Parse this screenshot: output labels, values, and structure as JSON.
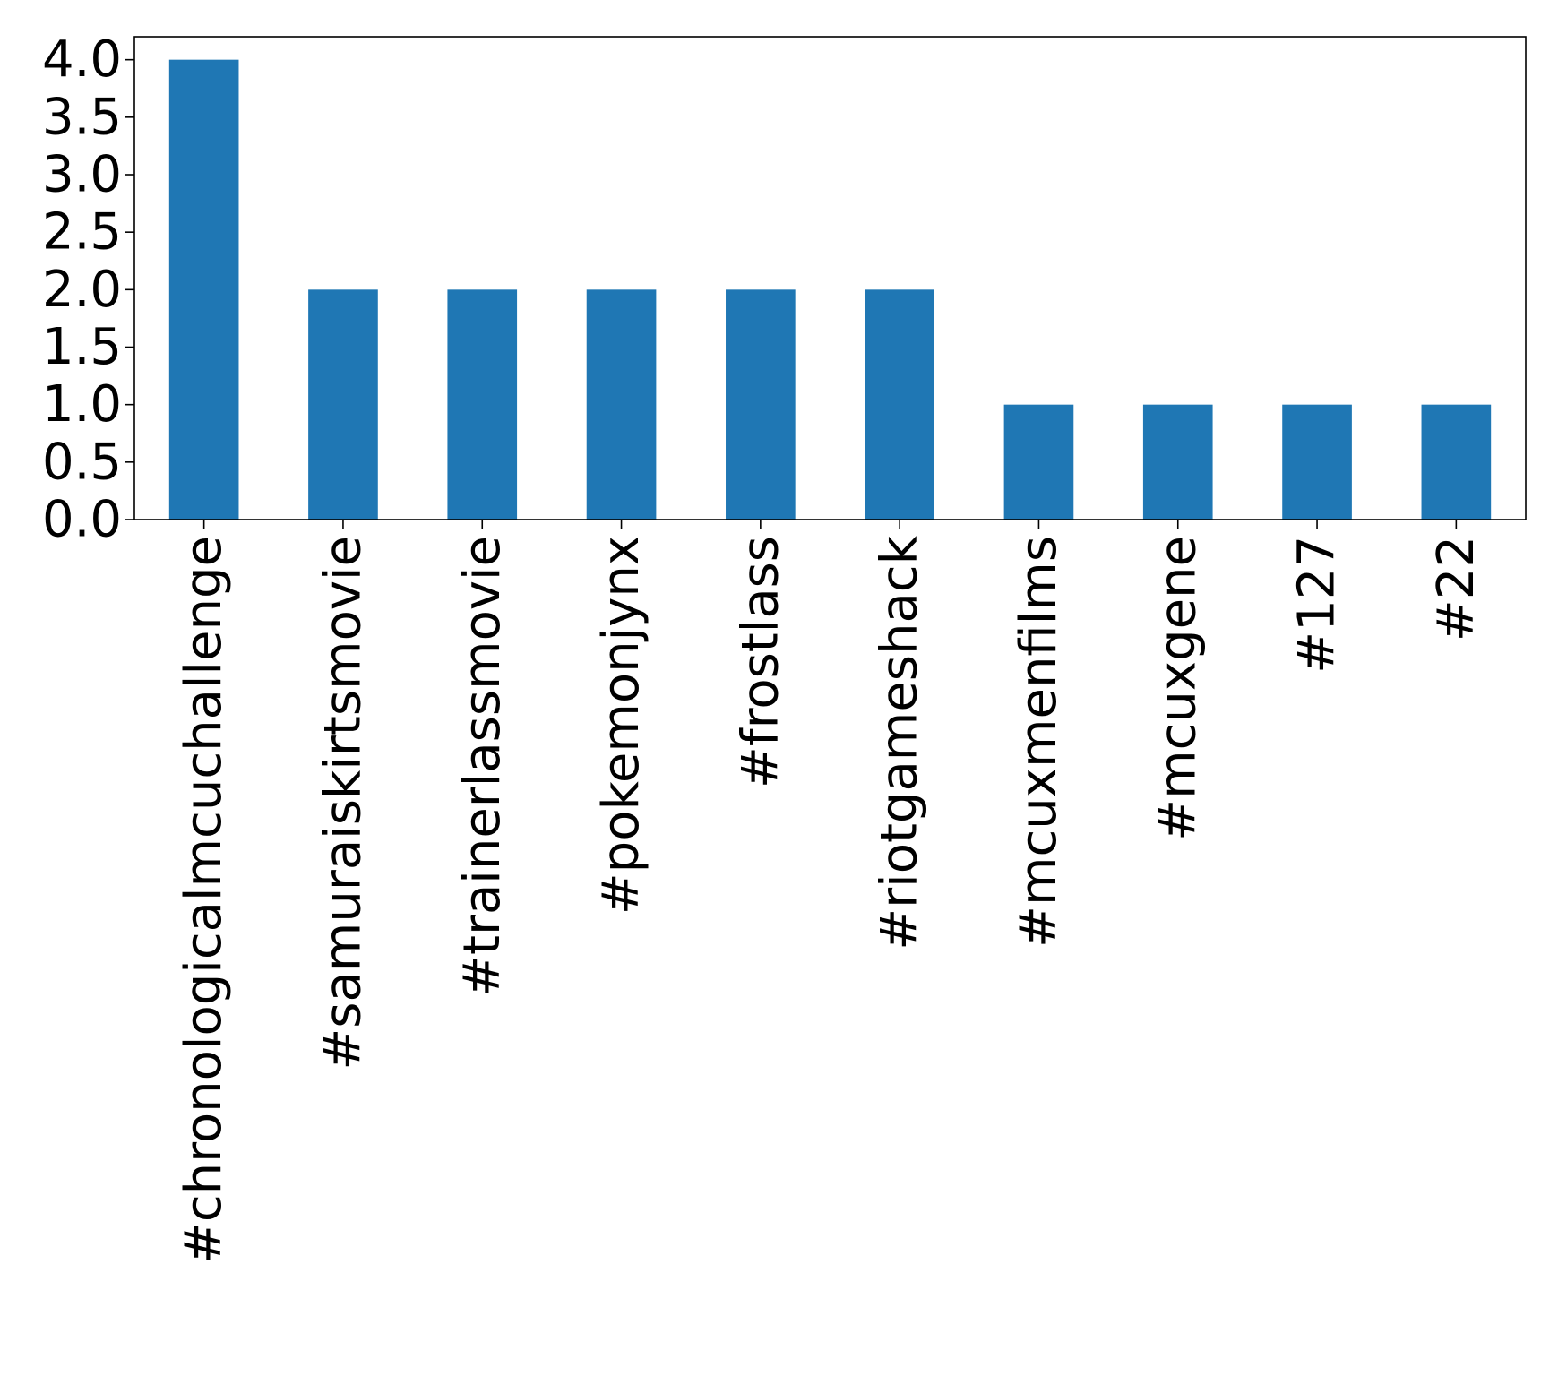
{
  "chart_data": {
    "type": "bar",
    "categories": [
      "#chronologicalmcuchallenge",
      "#samuraiskirtsmovie",
      "#trainerlassmovie",
      "#pokemonjynx",
      "#frostlass",
      "#riotgameshack",
      "#mcuxmenfilms",
      "#mcuxgene",
      "#127",
      "#22"
    ],
    "values": [
      4,
      2,
      2,
      2,
      2,
      2,
      1,
      1,
      1,
      1
    ],
    "ylim": [
      0,
      4.2
    ],
    "yticks": [
      "0.0",
      "0.5",
      "1.0",
      "1.5",
      "2.0",
      "2.5",
      "3.0",
      "3.5",
      "4.0"
    ],
    "title": "",
    "xlabel": "",
    "ylabel": "",
    "bar_color": "#1f77b4",
    "grid": false,
    "legend": "none",
    "x_tick_rotation": "vertical"
  }
}
